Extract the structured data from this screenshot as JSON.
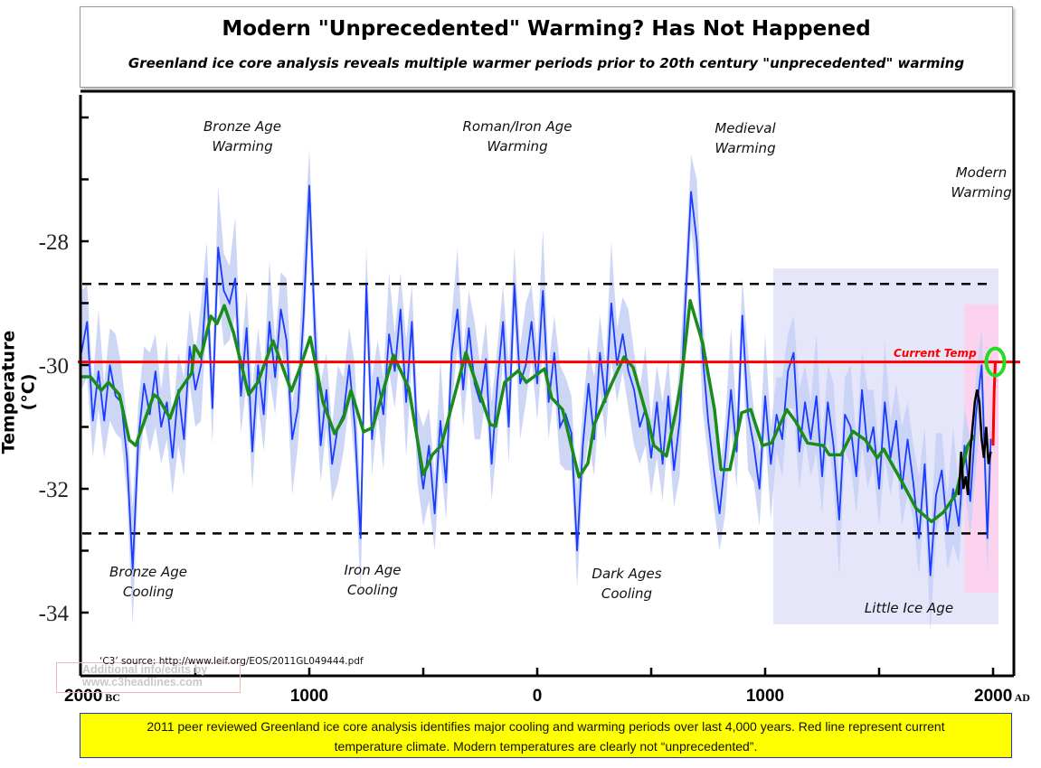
{
  "header": {
    "title": "Modern \"Unprecedented\" Warming? Has Not Happened",
    "subtitle": "Greenland ice core analysis reveals multiple warmer periods prior to 20th century \"unprecedented\" warming"
  },
  "footer": {
    "line1": "2011 peer reviewed Greenland ice core analysis identifies major cooling and warming periods over last 4,000 years. Red line represent current",
    "line2": "temperature climate. Modern temperatures are clearly not “unprecedented”."
  },
  "source_note": "‘C3’ source: http://www.leif.org/EOS/2011GL049444.pdf",
  "watermark": {
    "line1": "Additional info/edits by",
    "line2": "www.c3headlines.com"
  },
  "chart_data": {
    "type": "line",
    "title": "Modern \"Unprecedented\" Warming? Has Not Happened",
    "ylabel": "Temperature (°C)",
    "xlabel": "",
    "xlim": [
      -2000,
      2080
    ],
    "ylim": [
      -35,
      -25.3
    ],
    "x_ticks": [
      {
        "value": -2000,
        "label": "2000",
        "era": "BC"
      },
      {
        "value": -1000,
        "label": "1000",
        "era": ""
      },
      {
        "value": 0,
        "label": "0",
        "era": ""
      },
      {
        "value": 1000,
        "label": "1000",
        "era": ""
      },
      {
        "value": 2000,
        "label": "2000",
        "era": "AD"
      }
    ],
    "x_minor_ticks": [
      -1500,
      -500,
      500,
      1500
    ],
    "y_ticks": [
      {
        "value": -28,
        "label": "-28"
      },
      {
        "value": -30,
        "label": "-30"
      },
      {
        "value": -32,
        "label": "-32"
      },
      {
        "value": -34,
        "label": "-34"
      }
    ],
    "y_minor_ticks": [
      -26,
      -27,
      -29,
      -31,
      -33
    ],
    "grid": false,
    "colors": {
      "raw": "#1a3cff",
      "band": "#c5cff5",
      "smooth": "#1a8c1a",
      "instrumental": "#000000",
      "current": "#ff0000",
      "circle": "#22dd22",
      "little_ice_age": "#e6e6fa",
      "modern": "#fbd3ee"
    },
    "reference_lines": [
      {
        "name": "Current Temp",
        "value": -29.95,
        "color": "#ff0000",
        "style": "solid"
      },
      {
        "value": -28.69,
        "color": "#000000",
        "style": "dashed"
      },
      {
        "value": -32.72,
        "color": "#000000",
        "style": "dashed"
      }
    ],
    "shaded_regions": [
      {
        "x": [
          1036,
          2024
        ],
        "y": [
          -34.19,
          -28.44
        ],
        "color": "#e6e6fa"
      },
      {
        "x": [
          1873,
          2024
        ],
        "y": [
          -33.68,
          -29.02
        ],
        "color": "#fbd3ee"
      }
    ],
    "annotations": [
      {
        "text": [
          "Bronze Age",
          "Warming"
        ]
      },
      {
        "text": [
          "Roman/Iron Age",
          "Warming"
        ]
      },
      {
        "text": [
          "Medieval",
          "Warming"
        ]
      },
      {
        "text": [
          "Modern",
          "Warming"
        ]
      },
      {
        "text": [
          "Bronze Age",
          "Cooling"
        ]
      },
      {
        "text": [
          "Iron Age",
          "Cooling"
        ]
      },
      {
        "text": [
          "Dark Ages",
          "Cooling"
        ]
      },
      {
        "text": [
          "Little Ice Age"
        ]
      }
    ],
    "uncertainty_band_halfwidth": 0.5,
    "series": [
      {
        "key": "raw",
        "x": [
          -2000,
          -1975,
          -1950,
          -1925,
          -1900,
          -1875,
          -1850,
          -1825,
          -1800,
          -1775,
          -1750,
          -1725,
          -1700,
          -1675,
          -1650,
          -1625,
          -1600,
          -1575,
          -1550,
          -1525,
          -1500,
          -1475,
          -1450,
          -1425,
          -1400,
          -1375,
          -1350,
          -1325,
          -1300,
          -1275,
          -1250,
          -1225,
          -1200,
          -1175,
          -1150,
          -1125,
          -1100,
          -1075,
          -1050,
          -1025,
          -1000,
          -975,
          -950,
          -925,
          -900,
          -875,
          -850,
          -825,
          -800,
          -775,
          -750,
          -725,
          -700,
          -675,
          -650,
          -625,
          -600,
          -575,
          -550,
          -525,
          -500,
          -475,
          -450,
          -425,
          -400,
          -375,
          -350,
          -325,
          -300,
          -275,
          -250,
          -225,
          -200,
          -175,
          -150,
          -125,
          -100,
          -75,
          -50,
          -25,
          0,
          25,
          50,
          75,
          100,
          125,
          150,
          175,
          200,
          225,
          250,
          275,
          300,
          325,
          350,
          375,
          400,
          425,
          450,
          475,
          500,
          525,
          550,
          575,
          600,
          625,
          650,
          675,
          700,
          725,
          750,
          775,
          800,
          825,
          850,
          875,
          900,
          925,
          950,
          975,
          1000,
          1025,
          1050,
          1075,
          1100,
          1125,
          1150,
          1175,
          1200,
          1225,
          1250,
          1275,
          1300,
          1325,
          1350,
          1375,
          1400,
          1425,
          1450,
          1475,
          1500,
          1525,
          1550,
          1575,
          1600,
          1625,
          1650,
          1675,
          1700,
          1725,
          1750,
          1775,
          1800,
          1825,
          1850,
          1875,
          1900,
          1925,
          1950,
          1975,
          1990
        ],
        "y": [
          -29.8,
          -29.3,
          -30.9,
          -30.1,
          -30.9,
          -30.0,
          -30.5,
          -30.6,
          -31.5,
          -33.3,
          -31.2,
          -30.3,
          -30.8,
          -30.1,
          -31.0,
          -30.6,
          -31.5,
          -30.4,
          -31.2,
          -29.7,
          -30.4,
          -30.0,
          -28.6,
          -30.7,
          -28.1,
          -28.8,
          -29.0,
          -28.6,
          -30.5,
          -29.4,
          -31.4,
          -30.0,
          -30.8,
          -29.3,
          -30.2,
          -29.1,
          -29.6,
          -31.2,
          -30.7,
          -29.2,
          -27.1,
          -29.5,
          -31.3,
          -30.4,
          -31.6,
          -31.0,
          -30.8,
          -30.0,
          -31.0,
          -32.8,
          -28.7,
          -31.2,
          -30.2,
          -30.8,
          -29.5,
          -30.1,
          -29.1,
          -30.6,
          -29.3,
          -31.3,
          -32.0,
          -31.3,
          -32.4,
          -30.9,
          -31.9,
          -29.8,
          -29.1,
          -30.4,
          -29.4,
          -30.3,
          -30.6,
          -29.9,
          -31.6,
          -30.3,
          -29.3,
          -31.0,
          -28.7,
          -30.3,
          -30.0,
          -29.3,
          -30.3,
          -28.8,
          -30.6,
          -29.8,
          -31.0,
          -30.8,
          -31.1,
          -33.0,
          -31.3,
          -30.3,
          -31.2,
          -29.8,
          -30.6,
          -29.0,
          -30.0,
          -29.5,
          -30.1,
          -30.4,
          -31.0,
          -30.7,
          -31.5,
          -30.6,
          -31.6,
          -30.5,
          -31.7,
          -30.9,
          -29.0,
          -27.2,
          -28.0,
          -29.8,
          -30.9,
          -31.7,
          -32.4,
          -31.5,
          -30.4,
          -31.4,
          -29.2,
          -30.8,
          -31.3,
          -32.0,
          -30.5,
          -31.6,
          -30.8,
          -31.2,
          -30.1,
          -29.8,
          -31.4,
          -30.6,
          -31.2,
          -30.5,
          -31.8,
          -30.6,
          -31.3,
          -32.5,
          -30.8,
          -31.0,
          -31.8,
          -30.4,
          -31.4,
          -31.0,
          -32.0,
          -30.6,
          -31.5,
          -30.9,
          -32.0,
          -31.2,
          -31.9,
          -32.8,
          -31.6,
          -33.4,
          -32.1,
          -31.7,
          -32.7,
          -32.0,
          -32.6,
          -31.3,
          -32.2,
          -30.8,
          -30.0,
          -32.8,
          -31.2
        ]
      },
      {
        "key": "smooth",
        "x": [
          -2000,
          -1960,
          -1913,
          -1881,
          -1833,
          -1790,
          -1762,
          -1682,
          -1663,
          -1611,
          -1571,
          -1516,
          -1504,
          -1476,
          -1432,
          -1405,
          -1373,
          -1333,
          -1266,
          -1226,
          -1159,
          -1079,
          -1040,
          -996,
          -940,
          -889,
          -849,
          -817,
          -762,
          -722,
          -631,
          -563,
          -500,
          -460,
          -421,
          -313,
          -206,
          -183,
          -143,
          -83,
          -48,
          32,
          63,
          111,
          183,
          222,
          250,
          329,
          381,
          421,
          488,
          512,
          567,
          607,
          631,
          671,
          726,
          778,
          806,
          845,
          897,
          937,
          988,
          1028,
          1095,
          1135,
          1186,
          1254,
          1282,
          1333,
          1385,
          1440,
          1492,
          1520,
          1599,
          1663,
          1730,
          1782,
          1837,
          1889,
          1917
        ],
        "y": [
          -30.19,
          -30.19,
          -30.41,
          -30.28,
          -30.48,
          -31.21,
          -31.3,
          -30.48,
          -30.53,
          -30.86,
          -30.42,
          -30.13,
          -29.69,
          -29.87,
          -29.21,
          -29.33,
          -29.04,
          -29.47,
          -30.48,
          -30.28,
          -29.61,
          -30.42,
          -30.04,
          -29.55,
          -30.6,
          -31.11,
          -30.85,
          -30.41,
          -31.08,
          -31.01,
          -29.84,
          -30.38,
          -31.77,
          -31.45,
          -31.3,
          -29.8,
          -30.96,
          -30.99,
          -30.28,
          -30.09,
          -30.28,
          -30.06,
          -30.53,
          -30.72,
          -31.81,
          -31.59,
          -30.96,
          -30.28,
          -29.87,
          -30.04,
          -30.92,
          -31.3,
          -31.47,
          -30.77,
          -30.28,
          -28.96,
          -29.65,
          -30.72,
          -31.69,
          -31.69,
          -30.77,
          -30.72,
          -31.3,
          -31.26,
          -30.72,
          -30.92,
          -31.26,
          -31.3,
          -31.45,
          -31.45,
          -31.07,
          -31.21,
          -31.5,
          -31.36,
          -31.88,
          -32.32,
          -32.53,
          -32.38,
          -32.09,
          -31.3,
          -31.14
        ]
      },
      {
        "key": "instrumental",
        "x": [
          1850,
          1860,
          1870,
          1880,
          1890,
          1900,
          1910,
          1920,
          1930,
          1940,
          1950,
          1960,
          1970,
          1980,
          1990
        ],
        "y": [
          -32.1,
          -31.4,
          -32.0,
          -31.8,
          -32.1,
          -31.4,
          -31.0,
          -30.6,
          -30.4,
          -30.6,
          -31.2,
          -31.5,
          -31.0,
          -31.6,
          -31.4
        ]
      },
      {
        "key": "current",
        "x": [
          2000,
          2005,
          2010
        ],
        "y": [
          -31.3,
          -30.4,
          -29.95
        ]
      }
    ],
    "highlight_point": {
      "x": 2010,
      "y": -29.95
    }
  }
}
